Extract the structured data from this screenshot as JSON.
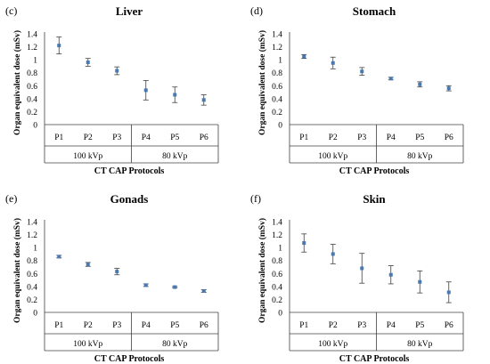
{
  "chart_data": [
    {
      "type": "scatter",
      "letter": "(c)",
      "title": "Liver",
      "ylabel": "Organ equivalent dose (mSv)",
      "xlabel": "CT CAP Protocols",
      "categories": [
        "P1",
        "P2",
        "P3",
        "P4",
        "P5",
        "P6"
      ],
      "groups": [
        "100 kVp",
        "80 kVp"
      ],
      "yticks": [
        "0",
        "0.2",
        "0.4",
        "0.6",
        "0.8",
        "1",
        "1.2",
        "1.4"
      ],
      "ylim": [
        0,
        1.4
      ],
      "values": [
        1.22,
        0.96,
        0.83,
        0.53,
        0.46,
        0.38
      ],
      "errors": [
        0.13,
        0.06,
        0.06,
        0.15,
        0.12,
        0.08
      ]
    },
    {
      "type": "scatter",
      "letter": "(d)",
      "title": "Stomach",
      "ylabel": "Organ equivalent dose (mSv)",
      "xlabel": "CT CAP Protocols",
      "categories": [
        "P1",
        "P2",
        "P3",
        "P4",
        "P5",
        "P6"
      ],
      "groups": [
        "100 kVp",
        "80 kVp"
      ],
      "yticks": [
        "0",
        "0.2",
        "0.4",
        "0.6",
        "0.8",
        "1",
        "1.2",
        "1.4"
      ],
      "ylim": [
        0,
        1.4
      ],
      "values": [
        1.05,
        0.95,
        0.82,
        0.71,
        0.62,
        0.56
      ],
      "errors": [
        0.03,
        0.09,
        0.06,
        0.02,
        0.04,
        0.04
      ]
    },
    {
      "type": "scatter",
      "letter": "(e)",
      "title": "Gonads",
      "ylabel": "Organ equivalent dose (mSv)",
      "xlabel": "CT CAP Protocols",
      "categories": [
        "P1",
        "P2",
        "P3",
        "P4",
        "P5",
        "P6"
      ],
      "groups": [
        "100 kVp",
        "80 kVp"
      ],
      "yticks": [
        "0",
        "0.2",
        "0.4",
        "0.6",
        "0.8",
        "1",
        "1.2",
        "1.4"
      ],
      "ylim": [
        0,
        1.4
      ],
      "values": [
        0.86,
        0.74,
        0.63,
        0.42,
        0.39,
        0.33
      ],
      "errors": [
        0.02,
        0.03,
        0.05,
        0.02,
        0.01,
        0.02
      ]
    },
    {
      "type": "scatter",
      "letter": "(f)",
      "title": "Skin",
      "ylabel": "Organ equivalent dose (mSv)",
      "xlabel": "CT CAP Protocols",
      "categories": [
        "P1",
        "P2",
        "P3",
        "P4",
        "P5",
        "P6"
      ],
      "groups": [
        "100 kVp",
        "80 kVp"
      ],
      "yticks": [
        "0",
        "0.2",
        "0.4",
        "0.6",
        "0.8",
        "1",
        "1.2",
        "1.4"
      ],
      "ylim": [
        0,
        1.4
      ],
      "values": [
        1.07,
        0.9,
        0.68,
        0.58,
        0.47,
        0.31
      ],
      "errors": [
        0.14,
        0.15,
        0.23,
        0.14,
        0.17,
        0.16
      ]
    }
  ]
}
